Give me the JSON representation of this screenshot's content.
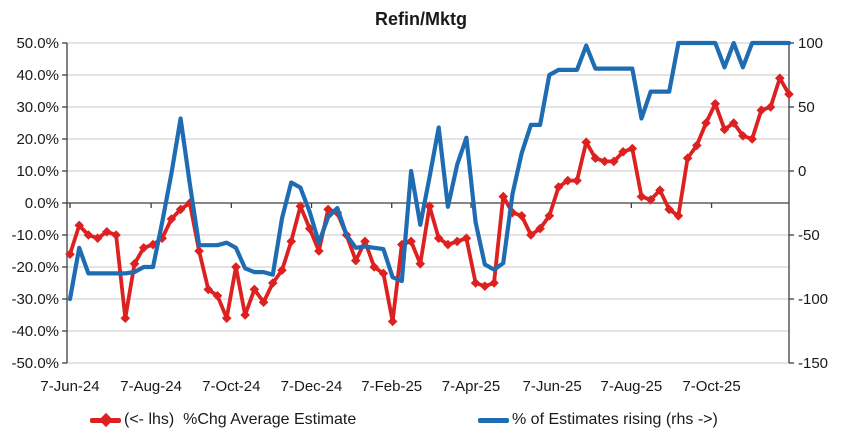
{
  "title": "Refin/Mktg",
  "legend": {
    "lhs_label": "(<- lhs)  %Chg Average Estimate",
    "rhs_label": "% of Estimates rising (rhs ->)"
  },
  "colors": {
    "red_series": "#dd2120",
    "blue_series": "#1e6cb2",
    "gridline": "#c9c9c9",
    "axis_line": "#3f3f3f",
    "tick_text": "#1a1a1a"
  },
  "left_axis": {
    "tick_labels": [
      "50.0%",
      "40.0%",
      "30.0%",
      "20.0%",
      "10.0%",
      "0.0%",
      "-10.0%",
      "-20.0%",
      "-30.0%",
      "-40.0%",
      "-50.0%"
    ],
    "max": 50,
    "min": -50
  },
  "right_axis": {
    "tick_labels": [
      "100",
      "50",
      "0",
      "-50",
      "-100",
      "-150"
    ],
    "max": 100,
    "min": -150
  },
  "x_axis": {
    "tick_labels": [
      "7-Jun-24",
      "7-Aug-24",
      "7-Oct-24",
      "7-Dec-24",
      "7-Feb-25",
      "7-Apr-25",
      "7-Jun-25",
      "7-Aug-25",
      "7-Oct-25"
    ]
  },
  "chart_data": {
    "type": "line",
    "title": "Refin/Mktg",
    "grid": true,
    "legend_position": "bottom",
    "left_ylim": [
      -50,
      50
    ],
    "right_ylim": [
      -150,
      100
    ],
    "x_tick_labels": [
      "7-Jun-24",
      "7-Aug-24",
      "7-Oct-24",
      "7-Dec-24",
      "7-Feb-25",
      "7-Apr-25",
      "7-Jun-25",
      "7-Aug-25",
      "7-Oct-25"
    ],
    "x_tick_positions_weeks": [
      0,
      8.8,
      17.5,
      26.2,
      34.9,
      43.5,
      52.3,
      60.9,
      69.6
    ],
    "n_points": 79,
    "series": [
      {
        "name": "(<- lhs)  %Chg Average Estimate",
        "axis": "left",
        "units": "%",
        "marker": "diamond",
        "color": "#dd2120",
        "values": [
          -16,
          -7,
          -10,
          -11,
          -9,
          -10,
          -36,
          -19,
          -14,
          -13,
          -11,
          -5,
          -2,
          0,
          -15,
          -27,
          -29,
          -36,
          -20,
          -35,
          -27,
          -31,
          -25,
          -21,
          -12,
          -1,
          -8,
          -15,
          -2,
          -3,
          -10,
          -18,
          -12,
          -20,
          -22,
          -37,
          -13,
          -12,
          -19,
          -1,
          -11,
          -13,
          -12,
          -11,
          -25,
          -26,
          -25,
          2,
          -3,
          -4,
          -10,
          -8,
          -4,
          5,
          7,
          7,
          19,
          14,
          13,
          13,
          16,
          17,
          2,
          1,
          4,
          -2,
          -4,
          14,
          18,
          25,
          31,
          23,
          25,
          21,
          20,
          29,
          30,
          39,
          34
        ]
      },
      {
        "name": "% of Estimates rising (rhs ->)",
        "axis": "right",
        "marker": "none",
        "color": "#1e6cb2",
        "values": [
          -100,
          -60,
          -80,
          -80,
          -80,
          -80,
          -80,
          -79,
          -75,
          -75,
          -40,
          -2,
          41,
          -10,
          -58,
          -58,
          -58,
          -56,
          -60,
          -76,
          -79,
          -79,
          -81,
          -37,
          -9,
          -13,
          -32,
          -56,
          -36,
          -29,
          -50,
          -60,
          -59,
          -60,
          -61,
          -83,
          -86,
          0,
          -42,
          -5,
          34,
          -28,
          5,
          26,
          -40,
          -73,
          -77,
          -72,
          -18,
          14,
          36,
          36,
          75,
          79,
          79,
          79,
          98,
          80,
          80,
          80,
          80,
          80,
          41,
          62,
          62,
          62,
          100,
          100,
          100,
          100,
          100,
          81,
          100,
          81,
          100,
          100,
          100,
          100,
          100
        ]
      }
    ]
  }
}
